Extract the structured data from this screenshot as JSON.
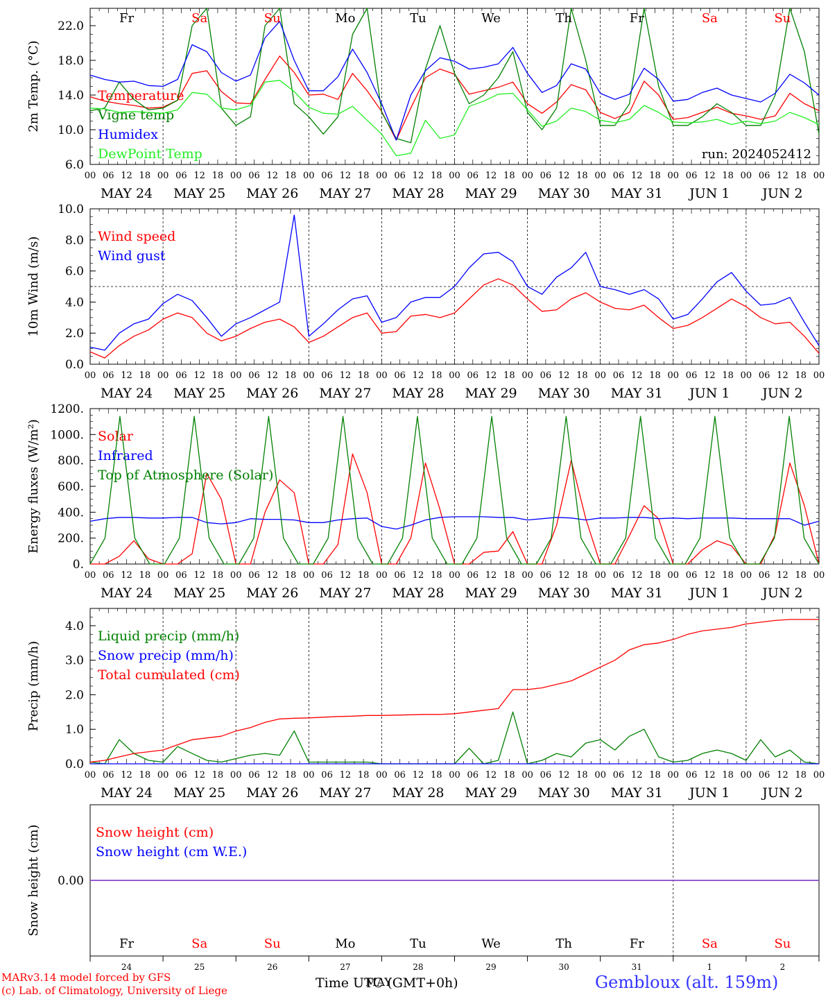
{
  "days_abbr": [
    "Fr",
    "Sa",
    "Su",
    "Mo",
    "Tu",
    "We",
    "Th",
    "Fr",
    "Sa",
    "Su"
  ],
  "day_nums": [
    "24",
    "25",
    "26",
    "27",
    "28",
    "29",
    "30",
    "31",
    "1",
    "2"
  ],
  "date_labels": [
    "MAY 24",
    "MAY 25",
    "MAY 26",
    "MAY 27",
    "MAY 28",
    "MAY 29",
    "MAY 30",
    "MAY 31",
    "JUN  1",
    "JUN  2"
  ],
  "hour_ticks": [
    "00",
    "06",
    "12",
    "18"
  ],
  "hour_end": "00",
  "weekend_color": "#ff0000",
  "weekday_color": "#000000",
  "run_label": "run: 2024052412",
  "xaxis_title": "Time UTC (GMT+0h)",
  "xaxis_title_overlay": "MAY",
  "credit_line1": "MARv3.14 model forced by GFS",
  "credit_line2": "(c) Lab. of Climatology, University of Liege",
  "station": "Gembloux (alt. 159m)",
  "chart_data": [
    {
      "type": "line",
      "ylabel": "2m Temp. (°C)",
      "ylim": [
        6,
        24
      ],
      "yticks": [
        "6.0",
        "10.0",
        "14.0",
        "18.0",
        "22.0"
      ],
      "ytick_values": [
        6,
        10,
        14,
        18,
        22
      ],
      "grid": false,
      "hline": null,
      "series": [
        {
          "name": "Temperature",
          "color": "#ff0000",
          "values": [
            13.8,
            13.3,
            13.0,
            12.8,
            12.5,
            12.6,
            13.4,
            16.5,
            16.8,
            14.4,
            13.1,
            13.0,
            15.8,
            18.5,
            16.6,
            14.0,
            14.1,
            13.5,
            16.5,
            14.5,
            12.1,
            8.8,
            12.5,
            16.0,
            17.0,
            16.4,
            14.1,
            14.5,
            14.9,
            15.5,
            13.0,
            11.9,
            13.2,
            15.2,
            14.6,
            12.0,
            11.3,
            12.0,
            15.6,
            14.0,
            11.2,
            11.4,
            12.0,
            12.6,
            11.9,
            11.6,
            11.2,
            11.6,
            14.2,
            13.0,
            12.2
          ]
        },
        {
          "name": "Vigne temp",
          "color": "#008000",
          "values": [
            12.2,
            12.5,
            15.5,
            13.5,
            12.3,
            12.5,
            13.4,
            22.0,
            24.0,
            12.5,
            10.5,
            11.5,
            22.0,
            24.0,
            13.0,
            11.5,
            9.5,
            11.5,
            21.0,
            24.0,
            12.0,
            9.0,
            8.5,
            17.0,
            22.0,
            16.5,
            13.0,
            14.0,
            16.0,
            19.0,
            12.0,
            10.0,
            12.5,
            24.0,
            18.0,
            10.5,
            10.5,
            13.0,
            24.0,
            15.0,
            10.5,
            10.5,
            11.5,
            13.0,
            12.0,
            10.5,
            10.5,
            14.0,
            24.0,
            19.0,
            9.5
          ]
        },
        {
          "name": "Humidex",
          "color": "#0000ff",
          "values": [
            16.3,
            15.8,
            15.5,
            15.6,
            15.1,
            15.0,
            15.8,
            19.8,
            19.0,
            16.6,
            15.6,
            16.3,
            20.6,
            22.5,
            18.0,
            14.5,
            14.5,
            16.1,
            19.3,
            16.6,
            13.0,
            8.8,
            14.0,
            16.8,
            18.3,
            17.9,
            17.0,
            17.2,
            17.6,
            19.5,
            16.5,
            14.3,
            15.1,
            17.6,
            17.0,
            14.2,
            13.5,
            14.1,
            17.1,
            15.8,
            13.3,
            13.5,
            14.3,
            14.8,
            14.0,
            13.6,
            13.2,
            14.2,
            16.4,
            15.4,
            14.0
          ]
        },
        {
          "name": "DewPoint Temp",
          "color": "#22ee22",
          "values": [
            12.5,
            12.4,
            12.0,
            12.1,
            12.0,
            11.9,
            12.3,
            14.3,
            14.1,
            12.5,
            12.3,
            12.8,
            15.5,
            15.7,
            14.4,
            12.6,
            11.9,
            11.8,
            12.7,
            11.1,
            9.5,
            7.0,
            7.3,
            11.1,
            9.0,
            9.4,
            12.7,
            13.3,
            14.1,
            14.2,
            12.3,
            10.4,
            11.0,
            12.5,
            12.1,
            11.1,
            10.8,
            11.2,
            12.8,
            12.0,
            10.9,
            10.8,
            10.9,
            11.2,
            10.6,
            11.0,
            10.7,
            11.0,
            12.0,
            11.4,
            10.6
          ]
        }
      ]
    },
    {
      "type": "line",
      "ylabel": "10m Wind (m/s)",
      "ylim": [
        0,
        10
      ],
      "yticks": [
        "0.0",
        "2.0",
        "4.0",
        "6.0",
        "8.0",
        "10.0"
      ],
      "ytick_values": [
        0,
        2,
        4,
        6,
        8,
        10
      ],
      "grid": false,
      "hline": 5,
      "series": [
        {
          "name": "Wind speed",
          "color": "#ff0000",
          "values": [
            0.8,
            0.4,
            1.2,
            1.8,
            2.2,
            2.9,
            3.3,
            3.0,
            2.0,
            1.5,
            1.8,
            2.3,
            2.7,
            2.9,
            2.4,
            1.4,
            1.8,
            2.4,
            3.0,
            3.3,
            2.0,
            2.1,
            3.1,
            3.2,
            3.0,
            3.3,
            4.2,
            5.1,
            5.5,
            5.1,
            4.2,
            3.4,
            3.5,
            4.2,
            4.6,
            4.0,
            3.6,
            3.5,
            3.8,
            3.0,
            2.3,
            2.5,
            3.0,
            3.6,
            4.2,
            3.7,
            3.0,
            2.6,
            2.7,
            1.8,
            0.7
          ]
        },
        {
          "name": "Wind gust",
          "color": "#0000ff",
          "values": [
            1.1,
            0.9,
            2.0,
            2.6,
            2.9,
            3.9,
            4.5,
            4.1,
            3.0,
            1.8,
            2.6,
            3.0,
            3.5,
            4.0,
            9.6,
            1.8,
            2.6,
            3.5,
            4.2,
            4.4,
            2.7,
            3.0,
            4.0,
            4.3,
            4.3,
            5.0,
            6.2,
            7.1,
            7.2,
            6.6,
            5.0,
            4.5,
            5.6,
            6.2,
            7.2,
            5.0,
            4.8,
            4.5,
            4.8,
            4.2,
            2.9,
            3.2,
            4.2,
            5.3,
            5.9,
            4.7,
            3.8,
            3.9,
            4.3,
            2.7,
            1.2
          ]
        }
      ]
    },
    {
      "type": "line",
      "ylabel": "Energy fluxes (W/m²)",
      "ylim": [
        0,
        1200
      ],
      "yticks": [
        "0.",
        "200.",
        "400.",
        "600.",
        "800.",
        "1000.",
        "1200."
      ],
      "ytick_values": [
        0,
        200,
        400,
        600,
        800,
        1000,
        1200
      ],
      "grid": false,
      "hline": null,
      "series": [
        {
          "name": "Solar",
          "color": "#ff0000",
          "values": [
            0,
            0,
            60,
            180,
            40,
            0,
            0,
            80,
            700,
            500,
            0,
            0,
            400,
            650,
            550,
            0,
            0,
            150,
            850,
            550,
            0,
            0,
            200,
            780,
            420,
            0,
            0,
            90,
            100,
            250,
            0,
            0,
            300,
            800,
            350,
            0,
            0,
            220,
            450,
            350,
            0,
            0,
            110,
            180,
            140,
            0,
            0,
            230,
            780,
            450,
            0
          ]
        },
        {
          "name": "Infrared",
          "color": "#0000ff",
          "values": [
            330,
            350,
            360,
            360,
            355,
            355,
            360,
            360,
            320,
            310,
            320,
            350,
            345,
            345,
            340,
            320,
            320,
            340,
            350,
            355,
            290,
            270,
            300,
            340,
            360,
            365,
            365,
            365,
            360,
            360,
            340,
            350,
            360,
            355,
            340,
            355,
            355,
            360,
            360,
            350,
            355,
            350,
            355,
            355,
            355,
            350,
            350,
            350,
            350,
            300,
            330
          ]
        },
        {
          "name": "Top of Atmosphere (Solar)",
          "color": "#008000",
          "values": [
            0,
            200,
            1140,
            200,
            0,
            0,
            200,
            1140,
            200,
            0,
            0,
            200,
            1140,
            200,
            0,
            0,
            200,
            1140,
            200,
            0,
            0,
            200,
            1140,
            200,
            0,
            0,
            200,
            1140,
            200,
            0,
            0,
            200,
            1140,
            200,
            0,
            0,
            200,
            1140,
            200,
            0,
            0,
            200,
            1140,
            200,
            0,
            0,
            200,
            1140,
            200,
            0
          ]
        }
      ]
    },
    {
      "type": "line",
      "ylabel": "Precip (mm/h)",
      "ylim": [
        0,
        4.5
      ],
      "yticks": [
        "0.0",
        "1.0",
        "2.0",
        "3.0",
        "4.0"
      ],
      "ytick_values": [
        0,
        1,
        2,
        3,
        4
      ],
      "grid": false,
      "hline": null,
      "series": [
        {
          "name": "Liquid precip (mm/h)",
          "color": "#008000",
          "values": [
            0.05,
            0.0,
            0.7,
            0.3,
            0.1,
            0.05,
            0.5,
            0.3,
            0.1,
            0.05,
            0.15,
            0.25,
            0.3,
            0.25,
            0.95,
            0.05,
            0.05,
            0.05,
            0.05,
            0.05,
            0.0,
            0.0,
            0.0,
            0.0,
            0.0,
            0.0,
            0.45,
            0.0,
            0.1,
            1.5,
            0.0,
            0.1,
            0.3,
            0.2,
            0.6,
            0.7,
            0.4,
            0.8,
            1.0,
            0.2,
            0.05,
            0.1,
            0.3,
            0.4,
            0.3,
            0.1,
            0.7,
            0.2,
            0.4,
            0.05,
            0.0
          ]
        },
        {
          "name": "Snow precip (mm/h)",
          "color": "#0000ff",
          "values": [
            0,
            0,
            0,
            0,
            0,
            0,
            0,
            0,
            0,
            0,
            0,
            0,
            0,
            0,
            0,
            0,
            0,
            0,
            0,
            0,
            0,
            0,
            0,
            0,
            0,
            0,
            0,
            0,
            0,
            0,
            0,
            0,
            0,
            0,
            0,
            0,
            0,
            0,
            0,
            0,
            0,
            0,
            0,
            0,
            0,
            0,
            0,
            0,
            0,
            0,
            0
          ]
        },
        {
          "name": "Total cumulated (cm)",
          "color": "#ff0000",
          "values": [
            0.05,
            0.1,
            0.2,
            0.3,
            0.35,
            0.4,
            0.55,
            0.7,
            0.75,
            0.8,
            0.95,
            1.05,
            1.2,
            1.3,
            1.32,
            1.33,
            1.35,
            1.37,
            1.38,
            1.4,
            1.4,
            1.41,
            1.42,
            1.43,
            1.43,
            1.45,
            1.5,
            1.55,
            1.6,
            2.15,
            2.15,
            2.2,
            2.3,
            2.4,
            2.6,
            2.8,
            3.0,
            3.3,
            3.45,
            3.5,
            3.6,
            3.75,
            3.85,
            3.9,
            3.95,
            4.05,
            4.1,
            4.15,
            4.18,
            4.18,
            4.18
          ]
        }
      ]
    },
    {
      "type": "line",
      "ylabel": "Snow height (cm)",
      "ylim": [
        -1,
        1
      ],
      "yticks": [
        "0.00"
      ],
      "ytick_values": [
        0
      ],
      "grid": false,
      "hline": null,
      "series": [
        {
          "name": "Snow height (cm)",
          "color": "#ff0000",
          "values": [
            0,
            0,
            0,
            0,
            0,
            0,
            0,
            0,
            0,
            0,
            0,
            0,
            0,
            0,
            0,
            0,
            0,
            0,
            0,
            0,
            0,
            0,
            0,
            0,
            0,
            0,
            0,
            0,
            0,
            0,
            0,
            0,
            0,
            0,
            0,
            0,
            0,
            0,
            0,
            0,
            0,
            0,
            0,
            0,
            0,
            0,
            0,
            0,
            0,
            0,
            0
          ]
        },
        {
          "name": "Snow height (cm W.E.)",
          "color": "#0000ff",
          "values": [
            0,
            0,
            0,
            0,
            0,
            0,
            0,
            0,
            0,
            0,
            0,
            0,
            0,
            0,
            0,
            0,
            0,
            0,
            0,
            0,
            0,
            0,
            0,
            0,
            0,
            0,
            0,
            0,
            0,
            0,
            0,
            0,
            0,
            0,
            0,
            0,
            0,
            0,
            0,
            0,
            0,
            0,
            0,
            0,
            0,
            0,
            0,
            0,
            0,
            0,
            0
          ]
        }
      ]
    }
  ]
}
